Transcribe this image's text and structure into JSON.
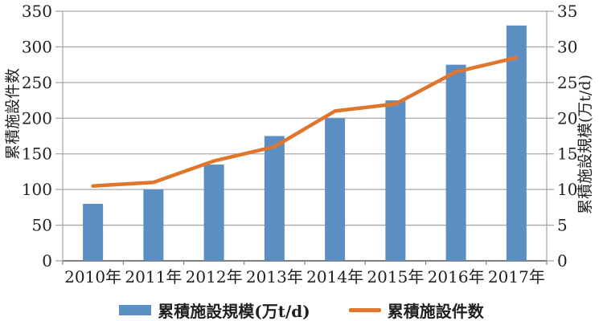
{
  "chart": {
    "legend": {
      "bar_label": "累積施設規模(万t/d)",
      "line_label": "累積施設件数"
    },
    "colors": {
      "bar": "#5b8fc4",
      "line": "#e0752c",
      "grid": "#a8a8a8",
      "axis": "#7f7f7f",
      "text": "#1f1f1f"
    }
  },
  "chart_data": {
    "type": "combo",
    "categories": [
      "2010年",
      "2011年",
      "2012年",
      "2013年",
      "2014年",
      "2015年",
      "2016年",
      "2017年"
    ],
    "series": [
      {
        "name": "累積施設規模(万t/d)",
        "type": "bar",
        "axis": "right",
        "values": [
          8,
          10,
          13.5,
          17.5,
          20,
          22.5,
          27.5,
          33
        ]
      },
      {
        "name": "累積施設件数",
        "type": "line",
        "axis": "left",
        "values": [
          105,
          110,
          140,
          160,
          210,
          220,
          265,
          285
        ]
      }
    ],
    "left_axis": {
      "label": "累積施設件数",
      "min": 0,
      "max": 350,
      "step": 50,
      "ticks": [
        "0",
        "50",
        "100",
        "150",
        "200",
        "250",
        "300",
        "350"
      ]
    },
    "right_axis": {
      "label": "累積施設規模(万t/d)",
      "min": 0,
      "max": 35,
      "step": 5,
      "ticks": [
        "0",
        "5",
        "10",
        "15",
        "20",
        "25",
        "30",
        "35"
      ]
    },
    "grid": true,
    "legend_position": "bottom"
  }
}
